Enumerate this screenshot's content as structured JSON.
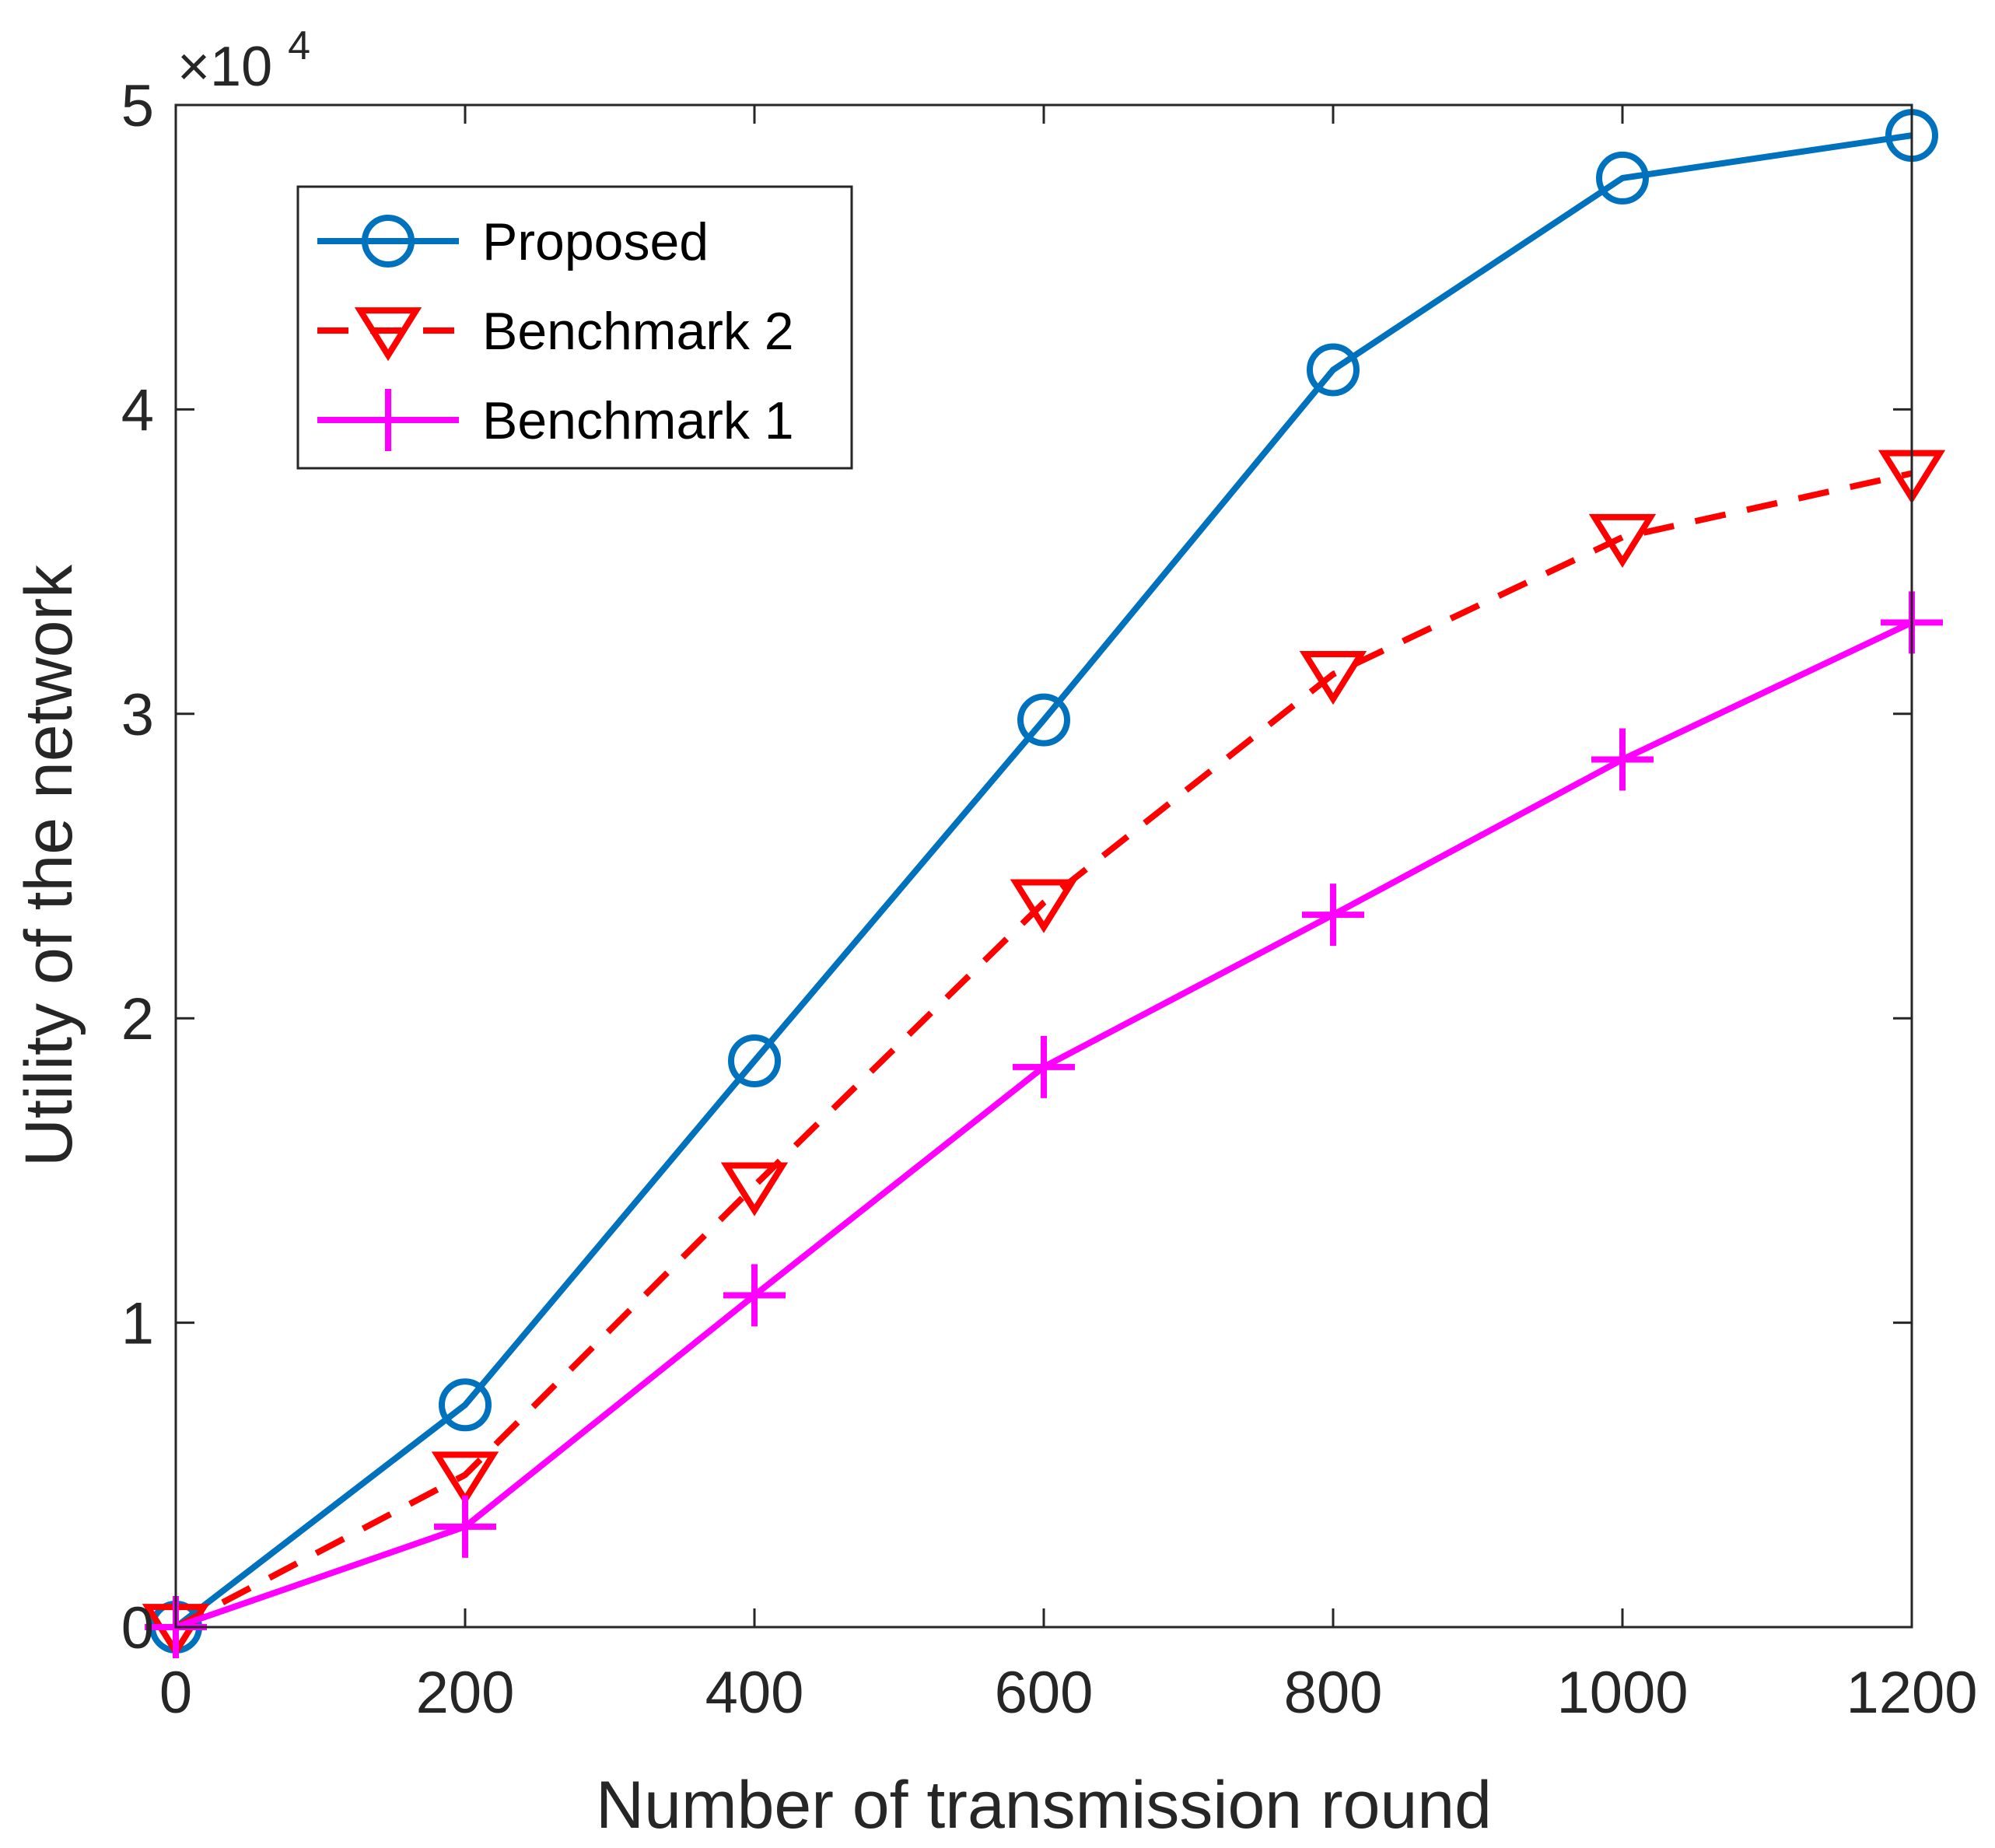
{
  "chart_data": {
    "type": "line",
    "title": "",
    "xlabel": "Number of transmission round",
    "ylabel": "Utility of the network",
    "x": [
      0,
      200,
      400,
      600,
      800,
      1000,
      1200
    ],
    "xticks": [
      "0",
      "200",
      "400",
      "600",
      "800",
      "1000",
      "1200"
    ],
    "yticks": [
      "0",
      "1",
      "2",
      "3",
      "4",
      "5"
    ],
    "xlim": [
      0,
      1200
    ],
    "ylim": [
      0,
      50000
    ],
    "y_multiplier": {
      "prefix": "×10",
      "exponent": "4"
    },
    "grid": false,
    "legend_position": "top-left",
    "series": [
      {
        "name": "Proposed",
        "color": "#0072BD",
        "marker": "circle",
        "line_style": "solid",
        "values": [
          0,
          7300,
          18600,
          29800,
          41300,
          47600,
          49000
        ]
      },
      {
        "name": "Benchmark 2",
        "color": "#FF0000",
        "marker": "triangle-down",
        "line_style": "dashed",
        "values": [
          0,
          5000,
          14500,
          23800,
          31300,
          35800,
          37900
        ]
      },
      {
        "name": "Benchmark 1",
        "color": "#FF00FF",
        "marker": "plus",
        "line_style": "solid",
        "values": [
          0,
          3300,
          10900,
          18400,
          23400,
          28500,
          33000
        ]
      }
    ]
  }
}
